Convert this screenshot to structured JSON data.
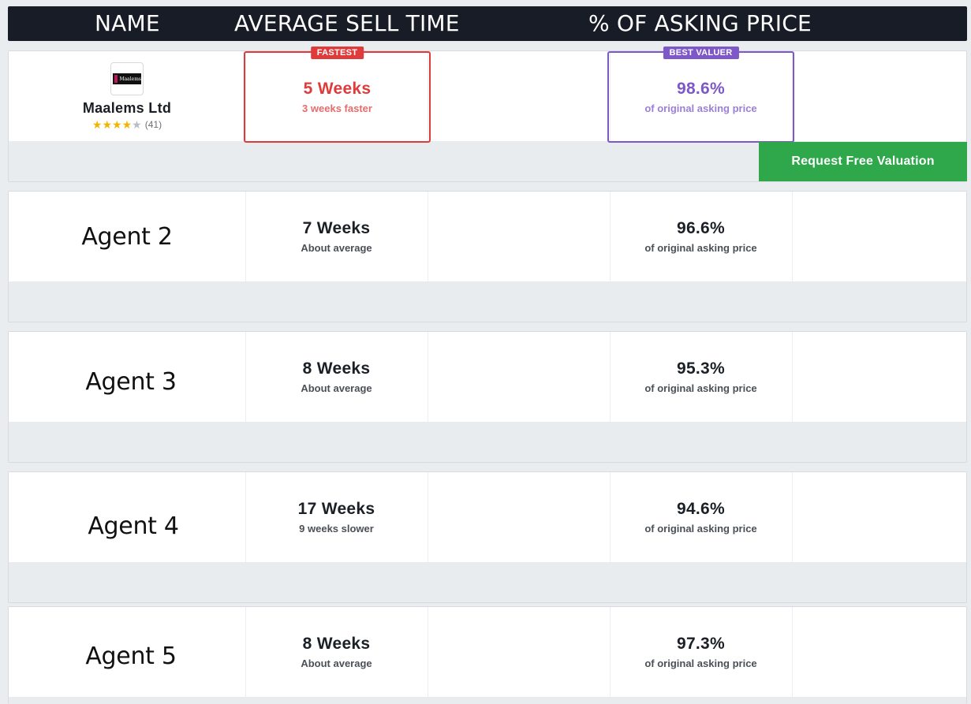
{
  "header": {
    "name": "NAME",
    "avg_sell_time": "AVERAGE SELL TIME",
    "pct_asking": "%  OF ASKING PRICE"
  },
  "featured": {
    "logo_text": "Maalems",
    "firm_name": "Maalems Ltd",
    "rating": {
      "stars": 4,
      "max": 5,
      "count": "(41)"
    },
    "sell_time": {
      "badge": "FASTEST",
      "value": "5 Weeks",
      "note": "3 weeks faster"
    },
    "asking": {
      "badge": "BEST VALUER",
      "value": "98.6%",
      "note": "of original asking price"
    },
    "cta_label": "Request Free Valuation",
    "colors": {
      "fastest": "#e03b3b",
      "best_valuer": "#7e57c9",
      "cta": "#2ea84a"
    }
  },
  "agents": [
    {
      "name": "Agent 2",
      "weeks": "7 Weeks",
      "weeks_note": "About average",
      "pct": "96.6%",
      "pct_note": "of original asking price"
    },
    {
      "name": "Agent 3",
      "weeks": "8 Weeks",
      "weeks_note": "About average",
      "pct": "95.3%",
      "pct_note": "of original asking price"
    },
    {
      "name": "Agent 4",
      "weeks": "17 Weeks",
      "weeks_note": "9 weeks slower",
      "pct": "94.6%",
      "pct_note": "of original asking price"
    },
    {
      "name": "Agent 5",
      "weeks": "8 Weeks",
      "weeks_note": "About average",
      "pct": "97.3%",
      "pct_note": "of original asking price"
    }
  ]
}
